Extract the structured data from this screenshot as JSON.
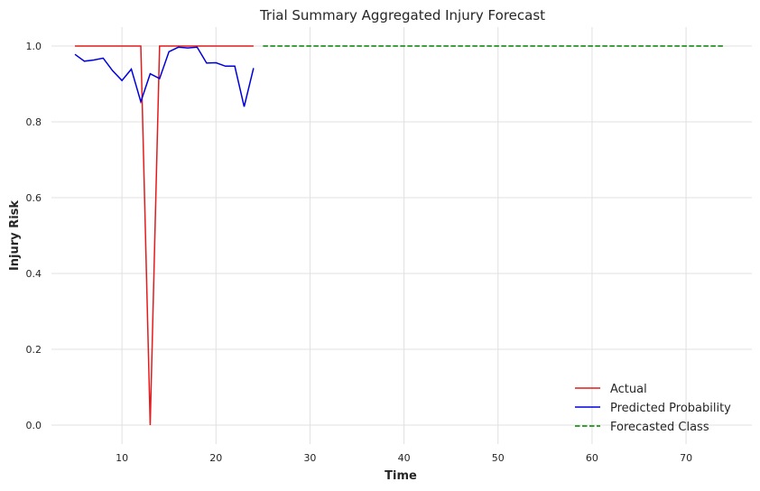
{
  "chart_data": {
    "type": "line",
    "title": "Trial Summary Aggregated Injury Forecast",
    "xlabel": "Time",
    "ylabel": "Injury Risk",
    "xlim": [
      2.5,
      77
    ],
    "ylim": [
      -0.05,
      1.05
    ],
    "xticks": [
      10,
      20,
      30,
      40,
      50,
      60,
      70
    ],
    "yticks": [
      0.0,
      0.2,
      0.4,
      0.6,
      0.8,
      1.0
    ],
    "grid": true,
    "legend_position": "bottom-right",
    "series": [
      {
        "name": "Actual",
        "color": "#e41a1c",
        "style": "solid",
        "x": [
          5,
          6,
          7,
          8,
          9,
          10,
          11,
          12,
          13,
          14,
          15,
          16,
          17,
          18,
          19,
          20,
          21,
          22,
          23,
          24
        ],
        "y": [
          1,
          1,
          1,
          1,
          1,
          1,
          1,
          1,
          0,
          1,
          1,
          1,
          1,
          1,
          1,
          1,
          1,
          1,
          1,
          1
        ]
      },
      {
        "name": "Predicted Probability",
        "color": "#0000dd",
        "style": "solid",
        "x": [
          5,
          6,
          7,
          8,
          9,
          10,
          11,
          12,
          13,
          14,
          15,
          16,
          17,
          18,
          19,
          20,
          21,
          22,
          23,
          24
        ],
        "y": [
          0.978,
          0.96,
          0.963,
          0.968,
          0.935,
          0.909,
          0.939,
          0.853,
          0.927,
          0.914,
          0.985,
          0.997,
          0.995,
          0.997,
          0.955,
          0.956,
          0.947,
          0.947,
          0.84,
          0.942
        ]
      },
      {
        "name": "Forecasted Class",
        "color": "#008000",
        "style": "dashed",
        "x": [
          25,
          74
        ],
        "y": [
          1,
          1
        ]
      }
    ]
  }
}
